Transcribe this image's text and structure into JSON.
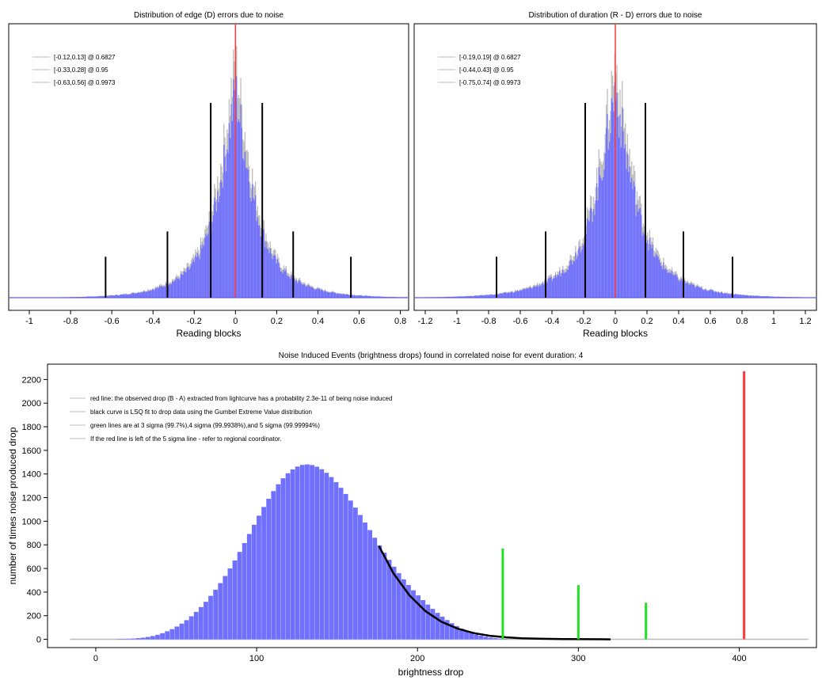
{
  "colors": {
    "bar": "#7070ff",
    "curve_gray": "#bdbdbd",
    "red": "#ff3b3b",
    "green": "#22e022",
    "black": "#000000",
    "baseline": "#5a5aff"
  },
  "chart_data": [
    {
      "id": "edge",
      "type": "histogram",
      "title": "Distribution of edge (D) errors due to noise",
      "xlabel": "Reading blocks",
      "ylabel": "",
      "xlim": [
        -1.1,
        0.84
      ],
      "xticks": [
        -1,
        -0.8,
        -0.6,
        -0.4,
        -0.2,
        0,
        0.2,
        0.4,
        0.6,
        0.8
      ],
      "xtick_labels": [
        "-1",
        "-0.8",
        "-0.6",
        "-0.4",
        "-0.2",
        "0",
        "0.2",
        "0.4",
        "0.6",
        "0.8"
      ],
      "dist": {
        "center": 0.0,
        "width": 0.12
      },
      "legend": [
        "[-0.12,0.13] @ 0.6827",
        "[-0.33,0.28] @ 0.95",
        "[-0.63,0.56] @ 0.9973"
      ],
      "red_line_x": 0.0,
      "black_lines": [
        {
          "x": -0.12,
          "height": 1.0
        },
        {
          "x": 0.13,
          "height": 1.0
        },
        {
          "x": -0.33,
          "height": 0.34
        },
        {
          "x": 0.28,
          "height": 0.34
        },
        {
          "x": -0.63,
          "height": 0.21
        },
        {
          "x": 0.56,
          "height": 0.21
        }
      ]
    },
    {
      "id": "duration",
      "type": "histogram",
      "title": "Distribution of duration (R - D) errors due to noise",
      "xlabel": "Reading blocks",
      "ylabel": "",
      "xlim": [
        -1.27,
        1.27
      ],
      "xticks": [
        -1.2,
        -1,
        -0.8,
        -0.6,
        -0.4,
        -0.2,
        0,
        0.2,
        0.4,
        0.6,
        0.8,
        1,
        1.2
      ],
      "xtick_labels": [
        "-1.2",
        "-1",
        "-0.8",
        "-0.6",
        "-0.4",
        "-0.2",
        "0",
        "0.2",
        "0.4",
        "0.6",
        "0.8",
        "1",
        "1.2"
      ],
      "dist": {
        "center": 0.0,
        "width": 0.17
      },
      "legend": [
        "[-0.19,0.19] @ 0.6827",
        "[-0.44,0.43] @ 0.95",
        "[-0.75,0.74] @ 0.9973"
      ],
      "red_line_x": 0.0,
      "black_lines": [
        {
          "x": -0.19,
          "height": 1.0
        },
        {
          "x": 0.19,
          "height": 1.0
        },
        {
          "x": -0.44,
          "height": 0.34
        },
        {
          "x": 0.43,
          "height": 0.34
        },
        {
          "x": -0.75,
          "height": 0.21
        },
        {
          "x": 0.74,
          "height": 0.21
        }
      ]
    },
    {
      "id": "drops",
      "type": "bar",
      "title": "Noise Induced Events (brightness drops) found in correlated noise for event duration: 4",
      "xlabel": "brightness drop",
      "ylabel": "number of times noise produced drop",
      "xlim": [
        -30,
        448
      ],
      "ylim": [
        -70,
        2330
      ],
      "xticks": [
        0,
        100,
        200,
        300,
        400
      ],
      "yticks": [
        0,
        200,
        400,
        600,
        800,
        1000,
        1200,
        1400,
        1600,
        1800,
        2000,
        2200
      ],
      "legend": [
        "red line: the observed drop (B - A) extracted from lightcurve has a probability 2.3e-11 of being noise induced",
        "black curve is LSQ fit to drop data using the Gumbel Extreme Value distribution",
        "green lines are at 3 sigma (99.7%),4 sigma (99.9938%),and 5 sigma (99.99994%)",
        "If the red line is left of the 5 sigma line - refer to regional coordinator."
      ],
      "bins": {
        "start": 10,
        "width": 3,
        "values": [
          2,
          3,
          4,
          5,
          7,
          10,
          14,
          20,
          28,
          38,
          52,
          68,
          86,
          108,
          133,
          162,
          195,
          232,
          273,
          318,
          368,
          420,
          476,
          536,
          600,
          668,
          740,
          815,
          892,
          970,
          1047,
          1121,
          1190,
          1255,
          1313,
          1364,
          1406,
          1439,
          1463,
          1477,
          1481,
          1476,
          1462,
          1440,
          1410,
          1374,
          1331,
          1283,
          1231,
          1175,
          1115,
          1053,
          989,
          925,
          860,
          796,
          734,
          673,
          615,
          560,
          508,
          460,
          415,
          372,
          332,
          294,
          258,
          224,
          192,
          163,
          136,
          112,
          90,
          71,
          55,
          42,
          31,
          22,
          15,
          10,
          6,
          4,
          2,
          1
        ]
      },
      "fit_curve": [
        [
          176,
          790
        ],
        [
          185,
          560
        ],
        [
          195,
          372
        ],
        [
          205,
          238
        ],
        [
          215,
          148
        ],
        [
          225,
          90
        ],
        [
          235,
          53
        ],
        [
          245,
          30
        ],
        [
          255,
          17
        ],
        [
          265,
          9
        ],
        [
          275,
          5
        ],
        [
          290,
          2
        ],
        [
          305,
          1
        ],
        [
          320,
          0
        ]
      ],
      "green_lines": [
        {
          "x": 253,
          "y": 770
        },
        {
          "x": 300,
          "y": 460
        },
        {
          "x": 342,
          "y": 310
        }
      ],
      "red_line": {
        "x": 403,
        "y": 2270
      }
    }
  ]
}
